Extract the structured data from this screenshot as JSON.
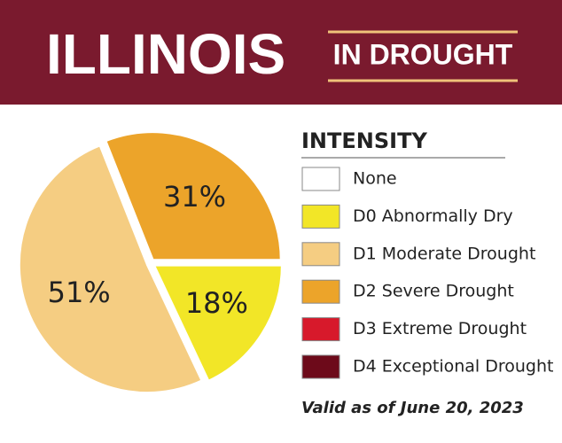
{
  "chart_data": {
    "type": "pie",
    "title": "ILLINOIS",
    "subtitle": "IN DROUGHT",
    "legend_title": "INTENSITY",
    "categories": [
      "None",
      "D0 Abnormally Dry",
      "D1 Moderate Drought",
      "D2 Severe Drought",
      "D3 Extreme Drought",
      "D4 Exceptional Drought"
    ],
    "values": [
      0,
      18,
      51,
      31,
      0,
      0
    ],
    "value_labels": [
      null,
      "18%",
      "51%",
      "31%",
      null,
      null
    ],
    "colors": [
      "#ffffff",
      "#f2e627",
      "#f5cd82",
      "#eca42a",
      "#d7192b",
      "#6d0a1a"
    ],
    "note": "Valid as of June 20, 2023"
  }
}
